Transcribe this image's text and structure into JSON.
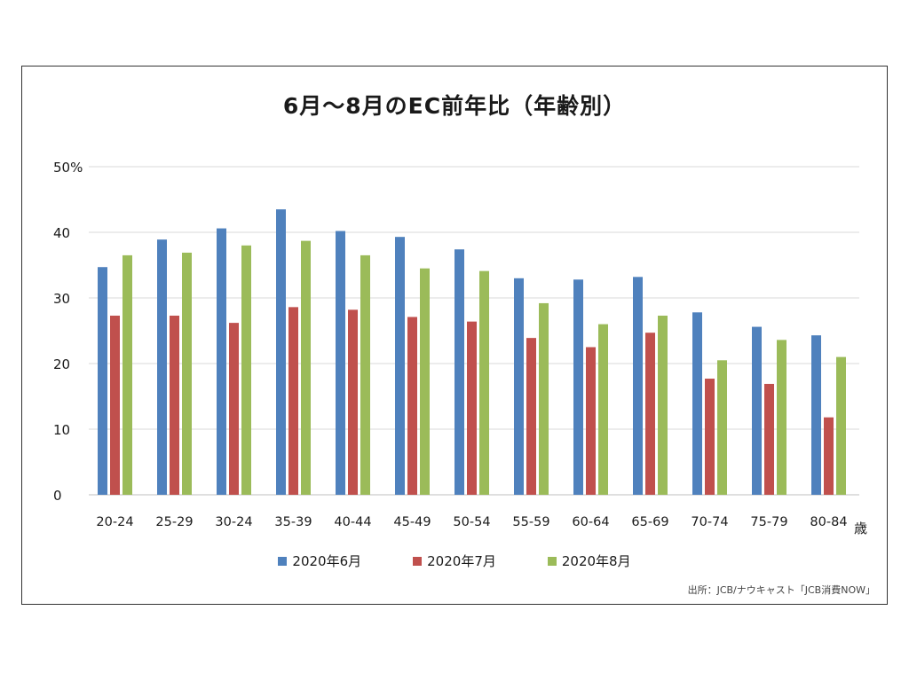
{
  "chart_data": {
    "type": "bar",
    "title": "6月～8月のEC前年比（年齢別）",
    "xlabel": "歳",
    "ylabel": "",
    "ylim": [
      0,
      50
    ],
    "yticks": [
      "0",
      "10",
      "20",
      "30",
      "40",
      "50%"
    ],
    "yticks_values": [
      0,
      10,
      20,
      30,
      40,
      50
    ],
    "grid": true,
    "legend_position": "bottom",
    "categories": [
      "20-24",
      "25-29",
      "30-24",
      "35-39",
      "40-44",
      "45-49",
      "50-54",
      "55-59",
      "60-64",
      "65-69",
      "70-74",
      "75-79",
      "80-84"
    ],
    "series": [
      {
        "name": "2020年6月",
        "color": "#4f81bd",
        "values": [
          34.7,
          38.9,
          40.6,
          43.5,
          40.2,
          39.3,
          37.4,
          33.0,
          32.8,
          33.2,
          27.8,
          25.6,
          24.3
        ]
      },
      {
        "name": "2020年7月",
        "color": "#c0504d",
        "values": [
          27.3,
          27.3,
          26.2,
          28.6,
          28.2,
          27.1,
          26.4,
          23.9,
          22.5,
          24.7,
          17.7,
          16.9,
          11.8
        ]
      },
      {
        "name": "2020年8月",
        "color": "#9bbb59",
        "values": [
          36.5,
          36.9,
          38.0,
          38.7,
          36.5,
          34.5,
          34.1,
          29.2,
          26.0,
          27.3,
          20.5,
          23.6,
          21.0
        ]
      }
    ],
    "source": "出所：JCB/ナウキャスト「JCB消費NOW」"
  }
}
